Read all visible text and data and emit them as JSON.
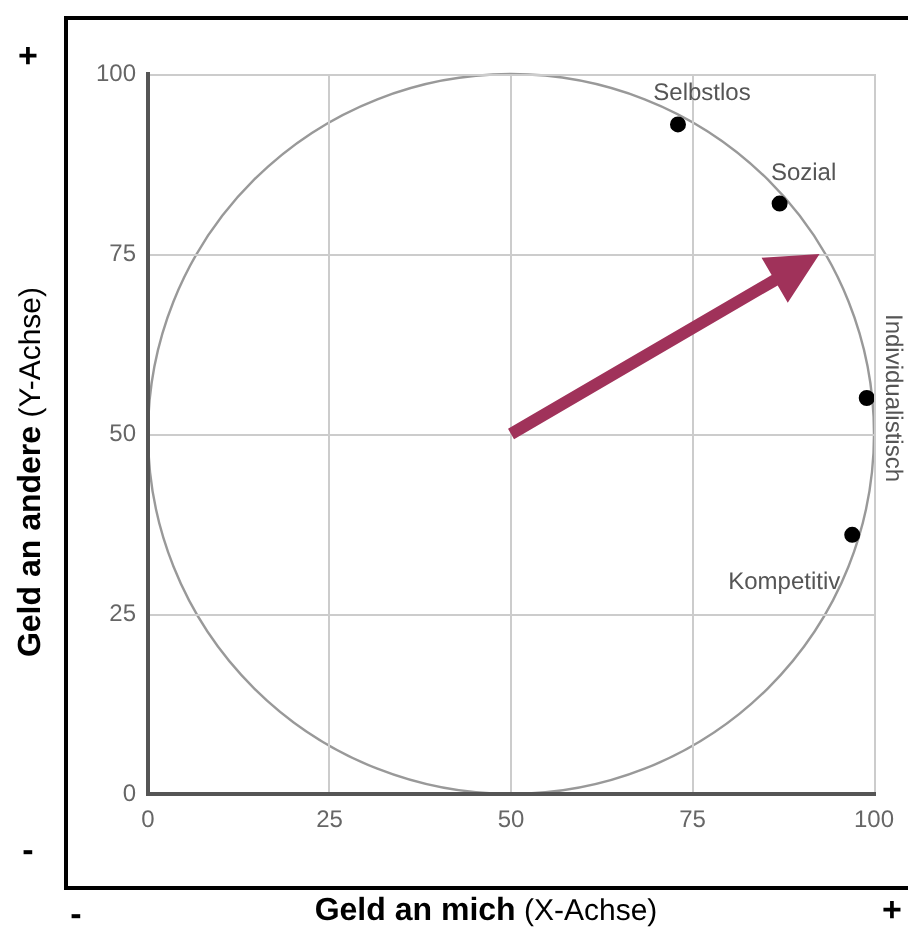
{
  "chart_data": {
    "type": "scatter",
    "xlabel": "Geld an mich (X-Achse)",
    "ylabel": "Geld an andere (Y-Achse)",
    "xlim": [
      0,
      100
    ],
    "ylim": [
      0,
      100
    ],
    "xticks": [
      0,
      25,
      50,
      75,
      100
    ],
    "yticks": [
      0,
      25,
      50,
      75,
      100
    ],
    "grid": true,
    "series": [
      {
        "type": "scatter",
        "color": "#000000",
        "marker": "circle",
        "x": [
          73,
          87,
          99,
          97
        ],
        "values": [
          93,
          82,
          55,
          36
        ]
      }
    ],
    "annotations": [
      {
        "text": "Selbstlos",
        "x": 73,
        "y": 93
      },
      {
        "text": "Sozial",
        "x": 87,
        "y": 82
      },
      {
        "text": "Individualistisch",
        "x": 99,
        "y": 55
      },
      {
        "text": "Kompetitiv",
        "x": 97,
        "y": 36
      },
      "+",
      "-",
      "-",
      "+"
    ]
  }
}
